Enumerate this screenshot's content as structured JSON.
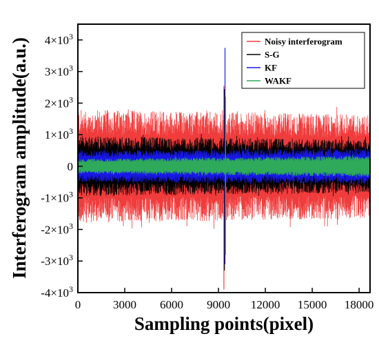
{
  "chart_data": {
    "type": "line",
    "title": "",
    "xlabel": "Sampling points(pixel)",
    "ylabel": "Interferogram amplitude(a.u.)",
    "xlim": [
      0,
      18700
    ],
    "ylim": [
      -4000,
      4500
    ],
    "x_ticks": [
      0,
      3000,
      6000,
      9000,
      12000,
      15000,
      18000
    ],
    "x_tick_labels": [
      "0",
      "3000",
      "6000",
      "9000",
      "12000",
      "15000",
      "18000"
    ],
    "y_ticks": [
      {
        "value": 4000,
        "mantissa": "4×10",
        "exp": "3"
      },
      {
        "value": 3000,
        "mantissa": "3×10",
        "exp": "3"
      },
      {
        "value": 2000,
        "mantissa": "2×10",
        "exp": "3"
      },
      {
        "value": 1000,
        "mantissa": "1×10",
        "exp": "3"
      },
      {
        "value": 0,
        "mantissa": "0",
        "exp": ""
      },
      {
        "value": -1000,
        "mantissa": "-1×10",
        "exp": "3"
      },
      {
        "value": -2000,
        "mantissa": "-2×10",
        "exp": "3"
      },
      {
        "value": -3000,
        "mantissa": "-3×10",
        "exp": "3"
      },
      {
        "value": -4000,
        "mantissa": "-4×10",
        "exp": "3"
      }
    ],
    "grid": false,
    "legend_position": "top-right",
    "interferogram_peak_x": 9400,
    "series": [
      {
        "name": "Noisy interferogram",
        "color": "#f03c3c",
        "envelope_start": 1800,
        "envelope_end": 1650,
        "peak_max": 2550,
        "peak_min": -3900
      },
      {
        "name": "S-G",
        "color": "#000000",
        "envelope_start": 950,
        "envelope_end": 850,
        "peak_max": 2450,
        "peak_min": -3300
      },
      {
        "name": "KF",
        "color": "#1818e6",
        "envelope_start": 500,
        "envelope_end": 550,
        "peak_max": 3750,
        "peak_min": -3100
      },
      {
        "name": "WAKF",
        "color": "#2eaa5a",
        "envelope_start": 230,
        "envelope_end": 330,
        "peak_max": 2200,
        "peak_min": -2800
      }
    ]
  }
}
